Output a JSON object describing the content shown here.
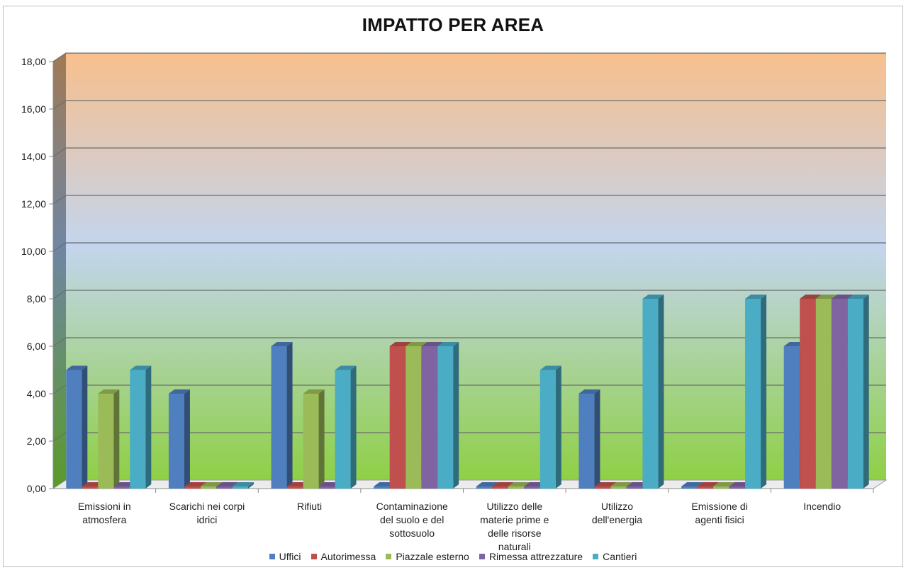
{
  "chart_data": {
    "type": "bar",
    "title": "IMPATTO PER AREA",
    "xlabel": "",
    "ylabel": "",
    "ylim": [
      0,
      18
    ],
    "y_ticks": [
      "0,00",
      "2,00",
      "4,00",
      "6,00",
      "8,00",
      "10,00",
      "12,00",
      "14,00",
      "16,00",
      "18,00"
    ],
    "grid": true,
    "legend_position": "bottom",
    "categories": [
      [
        "Emissioni in",
        "atmosfera"
      ],
      [
        "Scarichi nei corpi",
        "idrici"
      ],
      [
        "Rifiuti"
      ],
      [
        "Contaminazione",
        "del suolo e del",
        "sottosuolo"
      ],
      [
        "Utilizzo delle",
        "materie prime e",
        "delle risorse",
        "naturali"
      ],
      [
        "Utilizzo",
        "dell'energia"
      ],
      [
        "Emissione di",
        "agenti fisici"
      ],
      [
        "Incendio"
      ]
    ],
    "series": [
      {
        "name": "Uffici",
        "color": "#4f7fbf",
        "values": [
          5,
          4,
          6,
          0,
          0,
          4,
          0,
          6
        ]
      },
      {
        "name": "Autorimessa",
        "color": "#c0504d",
        "values": [
          0,
          0,
          0,
          6,
          0,
          0,
          0,
          8
        ]
      },
      {
        "name": "Piazzale esterno",
        "color": "#9bbb59",
        "values": [
          4,
          0,
          4,
          6,
          0,
          0,
          0,
          8
        ]
      },
      {
        "name": "Rimessa attrezzature",
        "color": "#8064a2",
        "values": [
          0,
          0,
          0,
          6,
          0,
          0,
          0,
          8
        ]
      },
      {
        "name": "Cantieri",
        "color": "#4bacc6",
        "values": [
          5,
          0,
          5,
          6,
          5,
          8,
          8,
          8
        ]
      }
    ]
  }
}
